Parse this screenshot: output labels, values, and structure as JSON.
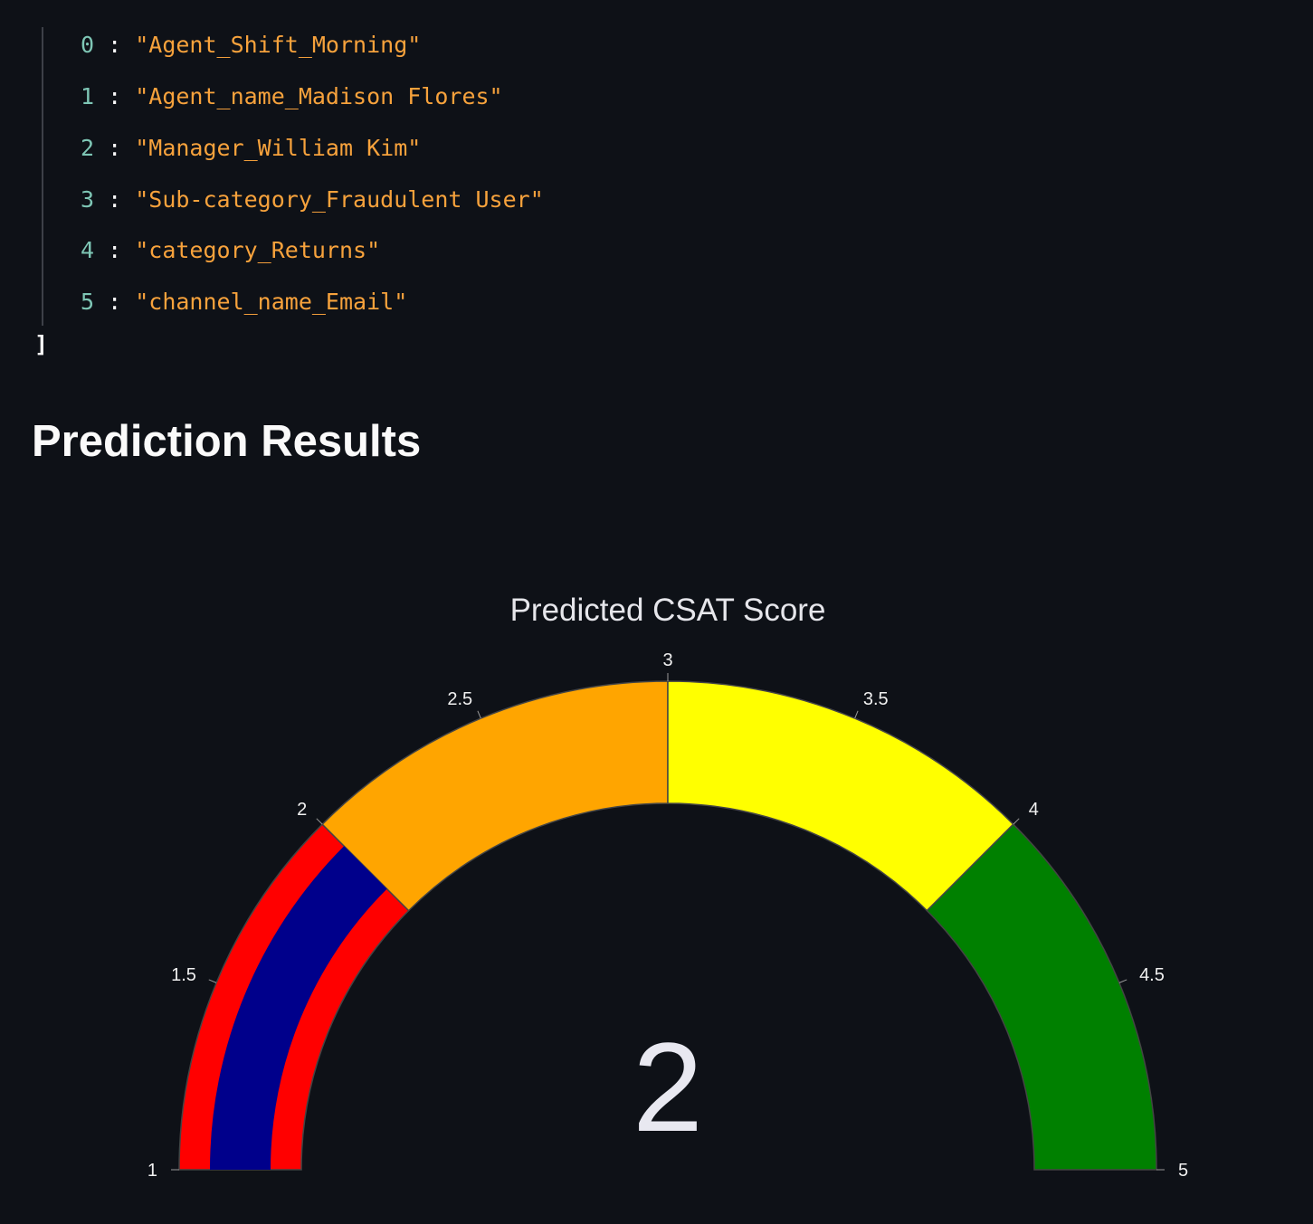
{
  "json_view": {
    "items": [
      {
        "index": "0",
        "value": "\"Agent_Shift_Morning\""
      },
      {
        "index": "1",
        "value": "\"Agent_name_Madison Flores\""
      },
      {
        "index": "2",
        "value": "\"Manager_William Kim\""
      },
      {
        "index": "3",
        "value": "\"Sub-category_Fraudulent User\""
      },
      {
        "index": "4",
        "value": "\"category_Returns\""
      },
      {
        "index": "5",
        "value": "\"channel_name_Email\""
      }
    ],
    "closing_bracket": "]"
  },
  "page": {
    "section_title": "Prediction Results"
  },
  "chart_data": {
    "type": "gauge",
    "title": "Predicted CSAT Score",
    "value": 2,
    "value_label": "2",
    "range": [
      1,
      5
    ],
    "ticks": [
      "1",
      "1.5",
      "2",
      "2.5",
      "3",
      "3.5",
      "4",
      "4.5",
      "5"
    ],
    "steps": [
      {
        "range": [
          1,
          2
        ],
        "color": "#ff0000"
      },
      {
        "range": [
          2,
          3
        ],
        "color": "#ffa500"
      },
      {
        "range": [
          3,
          4
        ],
        "color": "#ffff00"
      },
      {
        "range": [
          4,
          5
        ],
        "color": "#008000"
      }
    ],
    "bar": {
      "range": [
        1,
        2
      ],
      "color": "#00008b"
    }
  }
}
